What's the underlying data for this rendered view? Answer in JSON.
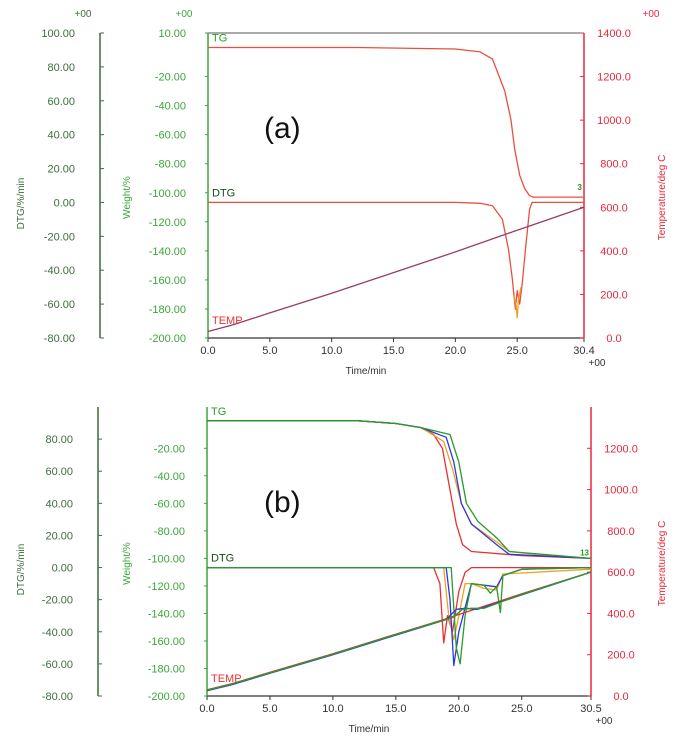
{
  "colors": {
    "dtg_axis": "#3c6e3c",
    "weight_axis": "#3aa63a",
    "temp_axis": "#e8283c",
    "tick_text_green": "#2f7a2f",
    "tick_text_red": "#e0283c"
  },
  "chart_data": [
    {
      "type": "line",
      "panel_label": "(a)",
      "xlabel": "Time/min",
      "exponent_labels": {
        "dtg": "+00",
        "weight": "+00",
        "temp": "+00",
        "time": "+00"
      },
      "curve_labels": {
        "tg": "TG",
        "dtg": "DTG",
        "temp": "TEMP"
      },
      "end_marker": "3",
      "x_axis": {
        "range": [
          0,
          30.4
        ],
        "ticks": [
          "0.0",
          "5.0",
          "10.0",
          "15.0",
          "20.0",
          "25.0",
          "30.4"
        ],
        "tick_values": [
          0,
          5,
          10,
          15,
          20,
          25,
          30.4
        ]
      },
      "dtg_axis": {
        "label": "DTG/%/min",
        "range": [
          -80,
          100
        ],
        "ticks": [
          "100.00",
          "80.00",
          "60.00",
          "40.00",
          "20.00",
          "0.00",
          "-20.00",
          "-40.00",
          "-60.00",
          "-80.00"
        ],
        "tick_values": [
          100,
          80,
          60,
          40,
          20,
          0,
          -20,
          -40,
          -60,
          -80
        ]
      },
      "weight_axis": {
        "label": "Weight/%",
        "range": [
          -200,
          10
        ],
        "ticks": [
          "10.00",
          "-20.00",
          "-40.00",
          "-60.00",
          "-80.00",
          "-100.00",
          "-120.00",
          "-140.00",
          "-160.00",
          "-180.00",
          "-200.00"
        ],
        "tick_values": [
          10,
          -20,
          -40,
          -60,
          -80,
          -100,
          -120,
          -140,
          -160,
          -180,
          -200
        ]
      },
      "temp_axis": {
        "label": "Temperature/deg C",
        "range": [
          0,
          1400
        ],
        "ticks": [
          "1400.0",
          "1200.0",
          "1000.0",
          "800.0",
          "600.0",
          "400.0",
          "200.0",
          "0.0"
        ],
        "tick_values": [
          1400,
          1200,
          1000,
          800,
          600,
          400,
          200,
          0
        ]
      },
      "series": [
        {
          "kind": "tg",
          "color": "#e8503c",
          "x": [
            0,
            12,
            20,
            22,
            23,
            24,
            24.5,
            24.8,
            25.2,
            25.6,
            26,
            26.3,
            30.4
          ],
          "y": [
            0,
            0,
            -1,
            -3,
            -8,
            -30,
            -50,
            -70,
            -88,
            -97,
            -102,
            -103,
            -103
          ]
        },
        {
          "kind": "dtg",
          "color": "#e8503c",
          "x": [
            0,
            20,
            22,
            23,
            23.8,
            24.3,
            24.6,
            24.85,
            25.0,
            25.2,
            25.4,
            25.7,
            26,
            26.2,
            30.4
          ],
          "y": [
            0,
            0,
            -0.5,
            -2,
            -10,
            -28,
            -45,
            -63,
            -52,
            -60,
            -48,
            -25,
            -4,
            0,
            0
          ]
        },
        {
          "kind": "dtg",
          "color": "#f0a020",
          "x": [
            24.7,
            24.9,
            25.0,
            25.1,
            25.3
          ],
          "y": [
            -55,
            -60,
            -68,
            -58,
            -50
          ]
        },
        {
          "kind": "temp",
          "color": "#9a3a6a",
          "x": [
            0,
            2,
            5,
            10,
            15,
            20,
            25,
            30.4
          ],
          "y": [
            30,
            60,
            115,
            205,
            300,
            395,
            495,
            600
          ]
        }
      ]
    },
    {
      "type": "line",
      "panel_label": "(b)",
      "xlabel": "Time/min",
      "exponent_labels": {
        "time": "+00"
      },
      "curve_labels": {
        "tg": "TG",
        "dtg": "DTG",
        "temp": "TEMP"
      },
      "end_marker": "13",
      "x_axis": {
        "range": [
          0,
          30.5
        ],
        "ticks": [
          "0.0",
          "5.0",
          "10.0",
          "15.0",
          "20.0",
          "25.0",
          "30.5"
        ],
        "tick_values": [
          0,
          5,
          10,
          15,
          20,
          25,
          30.5
        ]
      },
      "dtg_axis": {
        "label": "DTG/%/min",
        "range": [
          -80,
          100
        ],
        "ticks": [
          "80.00",
          "60.00",
          "40.00",
          "20.00",
          "0.00",
          "-20.00",
          "-40.00",
          "-60.00",
          "-80.00"
        ],
        "tick_values": [
          80,
          60,
          40,
          20,
          0,
          -20,
          -40,
          -60,
          -80
        ]
      },
      "weight_axis": {
        "label": "Weight/%",
        "range": [
          -200,
          10
        ],
        "ticks": [
          "-20.00",
          "-40.00",
          "-60.00",
          "-80.00",
          "-100.00",
          "-120.00",
          "-140.00",
          "-160.00",
          "-180.00",
          "-200.00"
        ],
        "tick_values": [
          -20,
          -40,
          -60,
          -80,
          -100,
          -120,
          -140,
          -160,
          -180,
          -200
        ]
      },
      "temp_axis": {
        "label": "Temperature/deg C",
        "range": [
          0,
          1400
        ],
        "ticks": [
          "1200.0",
          "1000.0",
          "800.0",
          "600.0",
          "400.0",
          "200.0",
          "0.0"
        ],
        "tick_values": [
          1200,
          1000,
          800,
          600,
          400,
          200,
          0
        ]
      },
      "series": [
        {
          "kind": "tg",
          "color": "#e83030",
          "x": [
            0,
            12,
            15,
            17,
            18,
            18.7,
            19.2,
            19.8,
            20.3,
            21,
            25,
            30.5
          ],
          "y": [
            0,
            0,
            -2,
            -5,
            -10,
            -20,
            -45,
            -75,
            -90,
            -95,
            -98,
            -100
          ]
        },
        {
          "kind": "tg",
          "color": "#f0a020",
          "x": [
            0,
            12,
            15,
            17,
            18.8,
            19.5,
            20.2,
            21,
            23,
            24,
            27,
            30.5
          ],
          "y": [
            0,
            0,
            -2,
            -5,
            -15,
            -35,
            -60,
            -75,
            -88,
            -95,
            -98,
            -100
          ]
        },
        {
          "kind": "tg",
          "color": "#2a3ad8",
          "x": [
            0,
            12,
            15,
            17,
            19,
            19.6,
            20.2,
            21,
            23,
            24,
            30.5
          ],
          "y": [
            0,
            0,
            -2,
            -5,
            -12,
            -30,
            -60,
            -75,
            -90,
            -97,
            -100
          ]
        },
        {
          "kind": "tg",
          "color": "#2a9a2a",
          "x": [
            0,
            12,
            15,
            17,
            19.3,
            20,
            20.6,
            21.5,
            23,
            24,
            30.5
          ],
          "y": [
            0,
            0,
            -2,
            -5,
            -10,
            -30,
            -60,
            -73,
            -85,
            -95,
            -100
          ]
        },
        {
          "kind": "dtg",
          "color": "#e83030",
          "x": [
            0,
            18,
            18.5,
            18.8,
            19.1,
            19.5,
            20,
            20.5,
            21,
            30.5
          ],
          "y": [
            0,
            0,
            -10,
            -47,
            -30,
            -40,
            -15,
            -3,
            0,
            0
          ]
        },
        {
          "kind": "dtg",
          "color": "#f0a020",
          "x": [
            0,
            18.8,
            19.2,
            19.6,
            20,
            20.5,
            21,
            22,
            23,
            23.5,
            30.5
          ],
          "y": [
            0,
            0,
            -30,
            -45,
            -30,
            -10,
            -10,
            -13,
            -14,
            -4,
            -1
          ]
        },
        {
          "kind": "dtg",
          "color": "#2a3ad8",
          "x": [
            0,
            19,
            19.3,
            19.6,
            20,
            20.5,
            21,
            22,
            23,
            23.5,
            25,
            30.5
          ],
          "y": [
            0,
            0,
            -20,
            -61,
            -40,
            -25,
            -10,
            -11,
            -12,
            -5,
            -1,
            0
          ]
        },
        {
          "kind": "dtg",
          "color": "#2a9a2a",
          "x": [
            0,
            19.4,
            19.6,
            19.8,
            20.1,
            20.5,
            21,
            22,
            22.5,
            23,
            23.3,
            23.5,
            25,
            30.5
          ],
          "y": [
            0,
            0,
            -25,
            -50,
            -60,
            -30,
            -10,
            -11,
            -16,
            -12,
            -28,
            -5,
            -1,
            0
          ]
        },
        {
          "kind": "temp",
          "color": "#e83030",
          "x": [
            0,
            2,
            5,
            10,
            15,
            18.5,
            20,
            25,
            30.5
          ],
          "y": [
            30,
            60,
            115,
            205,
            300,
            365,
            395,
            495,
            600
          ]
        },
        {
          "kind": "temp",
          "color": "#2a3ad8",
          "x": [
            0,
            2,
            5,
            10,
            15,
            19,
            19.8,
            20.5,
            21.5,
            25,
            30.5
          ],
          "y": [
            25,
            55,
            110,
            200,
            295,
            370,
            420,
            425,
            420,
            490,
            600
          ]
        },
        {
          "kind": "temp",
          "color": "#2a9a2a",
          "x": [
            0,
            2,
            5,
            10,
            15,
            19.5,
            20.3,
            21,
            22,
            25,
            30.5
          ],
          "y": [
            28,
            58,
            112,
            202,
            298,
            380,
            420,
            425,
            425,
            492,
            600
          ]
        }
      ]
    }
  ]
}
